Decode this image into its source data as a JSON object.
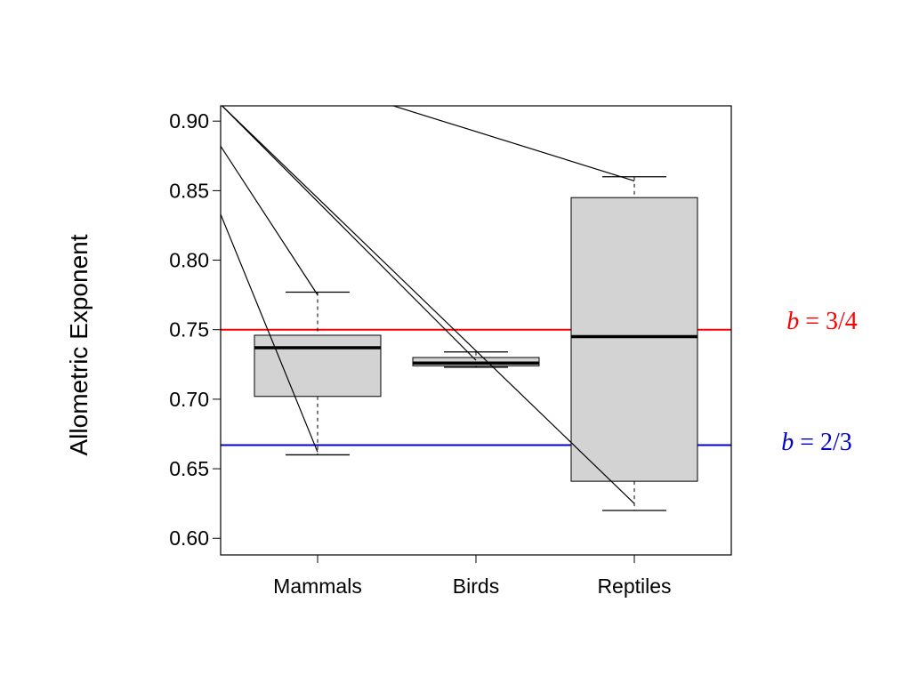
{
  "chart_data": {
    "type": "box",
    "categories": [
      "Mammals",
      "Birds",
      "Reptiles"
    ],
    "ylabel": "Allometric Exponent",
    "ylim": [
      0.588,
      0.911
    ],
    "yticks": [
      0.6,
      0.65,
      0.7,
      0.75,
      0.8,
      0.85,
      0.9
    ],
    "ytick_labels": [
      "0.60",
      "0.65",
      "0.70",
      "0.75",
      "0.80",
      "0.85",
      "0.90"
    ],
    "boxes": [
      {
        "category": "Mammals",
        "whisker_low": 0.66,
        "q1": 0.702,
        "median": 0.737,
        "q3": 0.746,
        "whisker_high": 0.777
      },
      {
        "category": "Birds",
        "whisker_low": 0.723,
        "q1": 0.724,
        "median": 0.726,
        "q3": 0.73,
        "whisker_high": 0.734
      },
      {
        "category": "Reptiles",
        "whisker_low": 0.62,
        "q1": 0.641,
        "median": 0.745,
        "q3": 0.845,
        "whisker_high": 0.86
      }
    ],
    "reference_lines": [
      {
        "value": 0.75,
        "label_italic": "b",
        "label_rest": " = 3/4",
        "color": "#ff0000"
      },
      {
        "value": 0.667,
        "label_italic": "b",
        "label_rest": " = 2/3",
        "color": "#0000cc"
      }
    ],
    "annotation_lines": [
      {
        "from": {
          "x": 0.0,
          "y": 0.912
        },
        "to": {
          "x": 2.0,
          "y": 0.625
        }
      },
      {
        "from": {
          "x": 0.0,
          "y": 0.912
        },
        "to": {
          "x": 1.0,
          "y": 0.728
        }
      },
      {
        "from": {
          "x": 0.0,
          "y": 0.882
        },
        "to": {
          "x": 0.0,
          "y": 0.775
        }
      },
      {
        "from": {
          "x": 0.0,
          "y": 0.833
        },
        "to": {
          "x": 0.0,
          "y": 0.662
        }
      },
      {
        "from": {
          "x": 0.45,
          "y": 0.912
        },
        "to": {
          "x": 2.0,
          "y": 0.857
        }
      }
    ],
    "box_fill": "#d3d3d3",
    "grid": false,
    "legend": "none"
  }
}
